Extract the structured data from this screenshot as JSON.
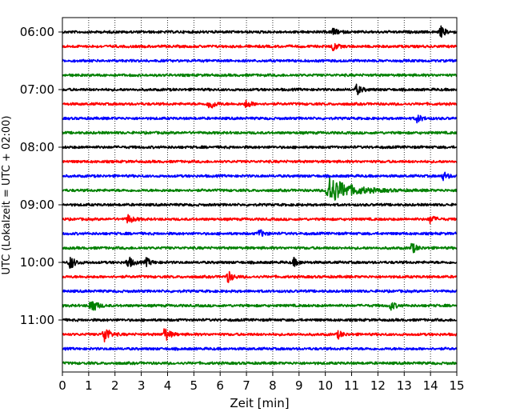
{
  "chart_data": {
    "type": "line",
    "title": "",
    "xlabel": "Zeit  [min]",
    "ylabel": "UTC (Lokalzeit = UTC + 02:00)",
    "xlim": [
      0,
      15
    ],
    "x_ticks": [
      "0",
      "1",
      "2",
      "3",
      "4",
      "5",
      "6",
      "7",
      "8",
      "9",
      "10",
      "11",
      "12",
      "13",
      "14",
      "15"
    ],
    "y_tick_labels": [
      "06:00",
      "07:00",
      "08:00",
      "09:00",
      "10:00",
      "11:00"
    ],
    "grid": "vertical dotted lines at each minute",
    "trace_start_utc": "06:00",
    "trace_interval_min": 15,
    "trace_count": 24,
    "trace_colors": [
      "#000000",
      "#ff0000",
      "#0000ff",
      "#008000"
    ],
    "events": [
      {
        "trace": 0,
        "minute": 10.3,
        "amplitude": 0.3
      },
      {
        "trace": 0,
        "minute": 14.4,
        "amplitude": 0.45
      },
      {
        "trace": 1,
        "minute": 10.3,
        "amplitude": 0.35
      },
      {
        "trace": 4,
        "minute": 11.2,
        "amplitude": 0.45
      },
      {
        "trace": 5,
        "minute": 5.6,
        "amplitude": 0.55
      },
      {
        "trace": 5,
        "minute": 7.0,
        "amplitude": 0.35
      },
      {
        "trace": 6,
        "minute": 13.5,
        "amplitude": 0.35
      },
      {
        "trace": 10,
        "minute": 14.5,
        "amplitude": 0.35
      },
      {
        "trace": 11,
        "minute": 10.1,
        "amplitude": 1.3,
        "duration": 1.6
      },
      {
        "trace": 13,
        "minute": 2.5,
        "amplitude": 0.4
      },
      {
        "trace": 13,
        "minute": 14.0,
        "amplitude": 0.35
      },
      {
        "trace": 14,
        "minute": 7.5,
        "amplitude": 0.35
      },
      {
        "trace": 15,
        "minute": 13.3,
        "amplitude": 0.45
      },
      {
        "trace": 16,
        "minute": 0.3,
        "amplitude": 0.6
      },
      {
        "trace": 16,
        "minute": 2.5,
        "amplitude": 0.55
      },
      {
        "trace": 16,
        "minute": 3.2,
        "amplitude": 0.35
      },
      {
        "trace": 16,
        "minute": 8.8,
        "amplitude": 0.35
      },
      {
        "trace": 17,
        "minute": 6.3,
        "amplitude": 0.5
      },
      {
        "trace": 19,
        "minute": 1.1,
        "amplitude": 0.8
      },
      {
        "trace": 19,
        "minute": 12.5,
        "amplitude": 0.35
      },
      {
        "trace": 21,
        "minute": 1.6,
        "amplitude": 0.85
      },
      {
        "trace": 21,
        "minute": 3.9,
        "amplitude": 0.65
      },
      {
        "trace": 21,
        "minute": 10.5,
        "amplitude": 0.3
      }
    ]
  }
}
